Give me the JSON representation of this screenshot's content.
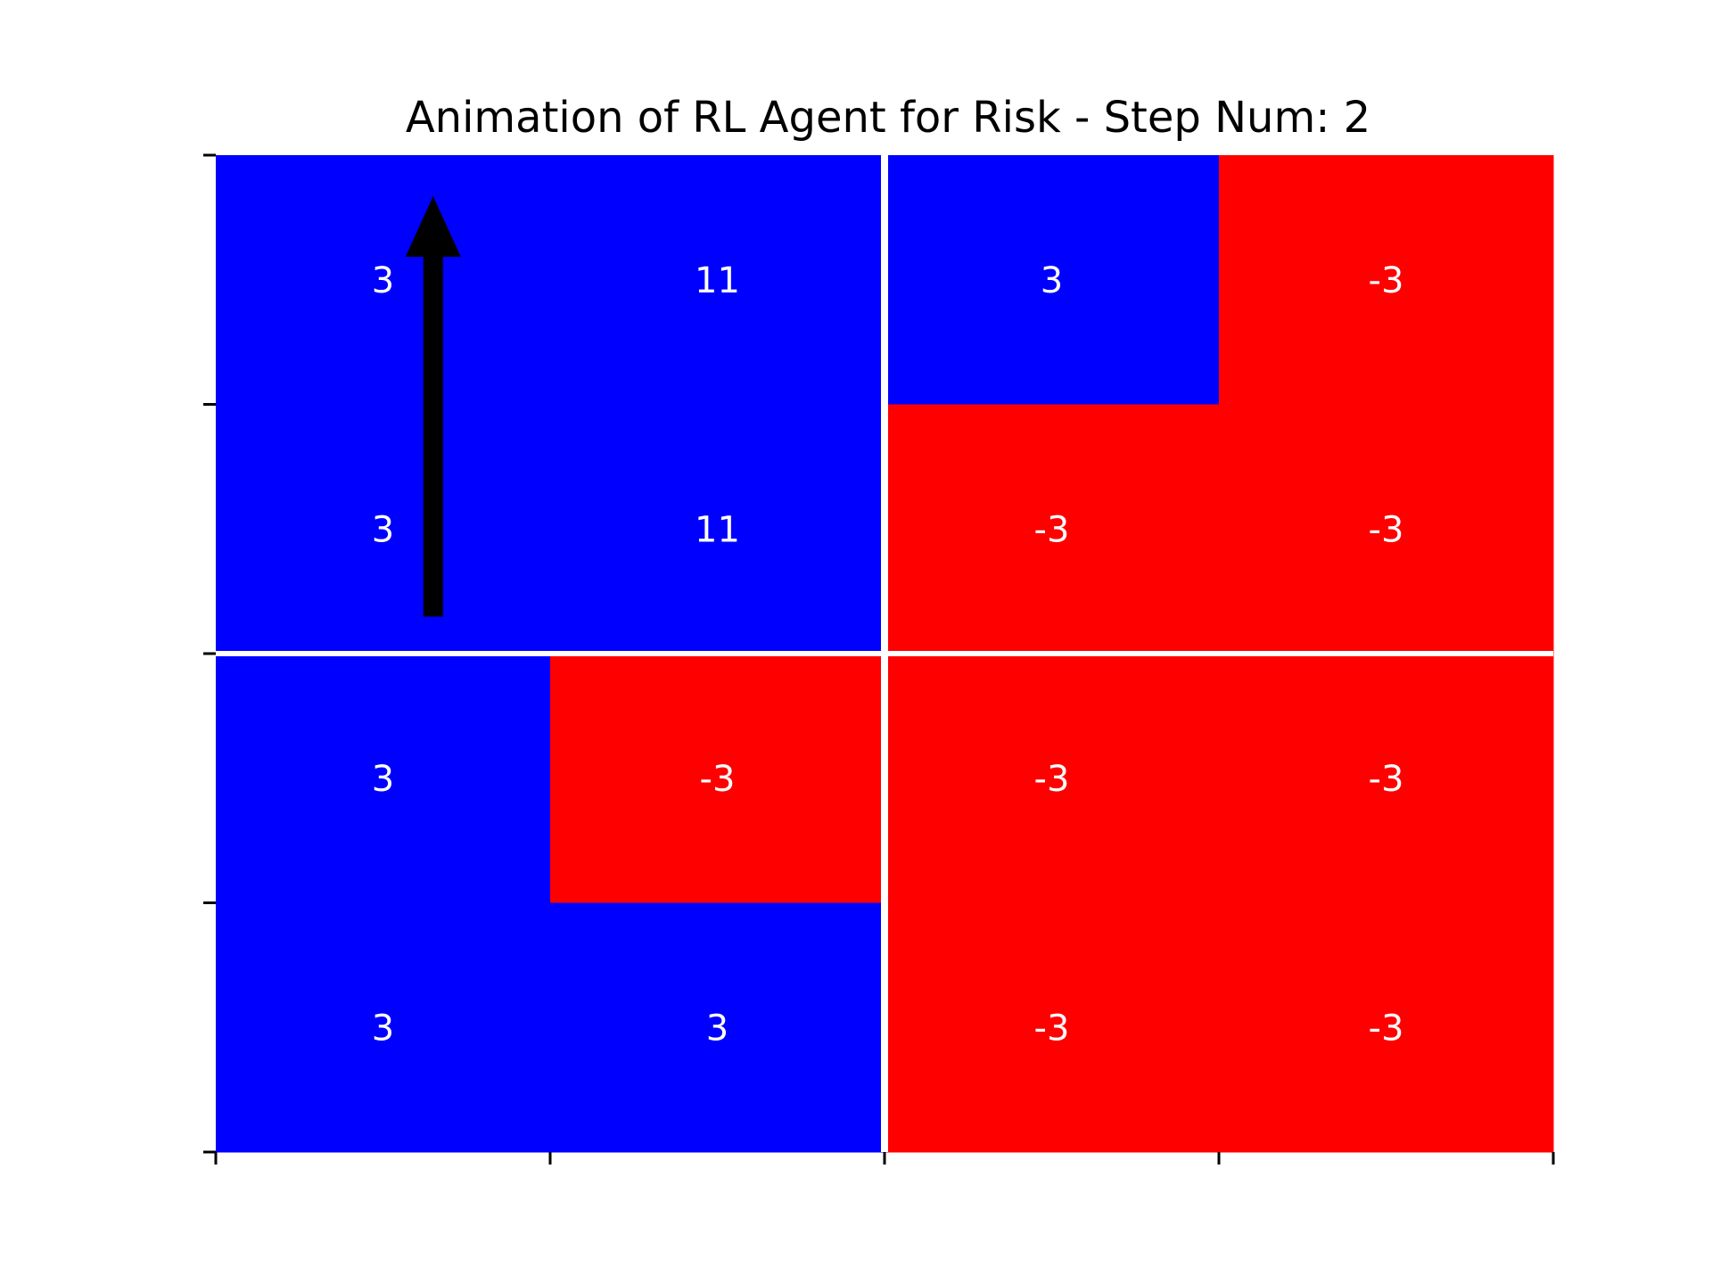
{
  "chart_data": {
    "type": "heatmap",
    "title": "Animation of RL Agent for Risk - Step Num: 2",
    "xlabel": "",
    "ylabel": "",
    "rows": 4,
    "cols": 4,
    "values": [
      [
        3,
        11,
        3,
        -3
      ],
      [
        3,
        11,
        -3,
        -3
      ],
      [
        3,
        -3,
        -3,
        -3
      ],
      [
        3,
        3,
        -3,
        -3
      ]
    ],
    "owner": [
      [
        "blue",
        "blue",
        "blue",
        "red"
      ],
      [
        "blue",
        "blue",
        "red",
        "red"
      ],
      [
        "blue",
        "red",
        "red",
        "red"
      ],
      [
        "blue",
        "blue",
        "red",
        "red"
      ]
    ],
    "colors": {
      "blue": "#0000ff",
      "red": "#ff0000",
      "label": "#ffffff",
      "divider": "#ffffff",
      "arrow": "#000000"
    },
    "dividers": {
      "row_after": 2,
      "col_after": 2
    },
    "arrow": {
      "from": {
        "row": 1,
        "col": 0
      },
      "to": {
        "row": 0,
        "col": 0
      },
      "direction": "up"
    },
    "tick_labels_shown": false,
    "grid": false
  }
}
